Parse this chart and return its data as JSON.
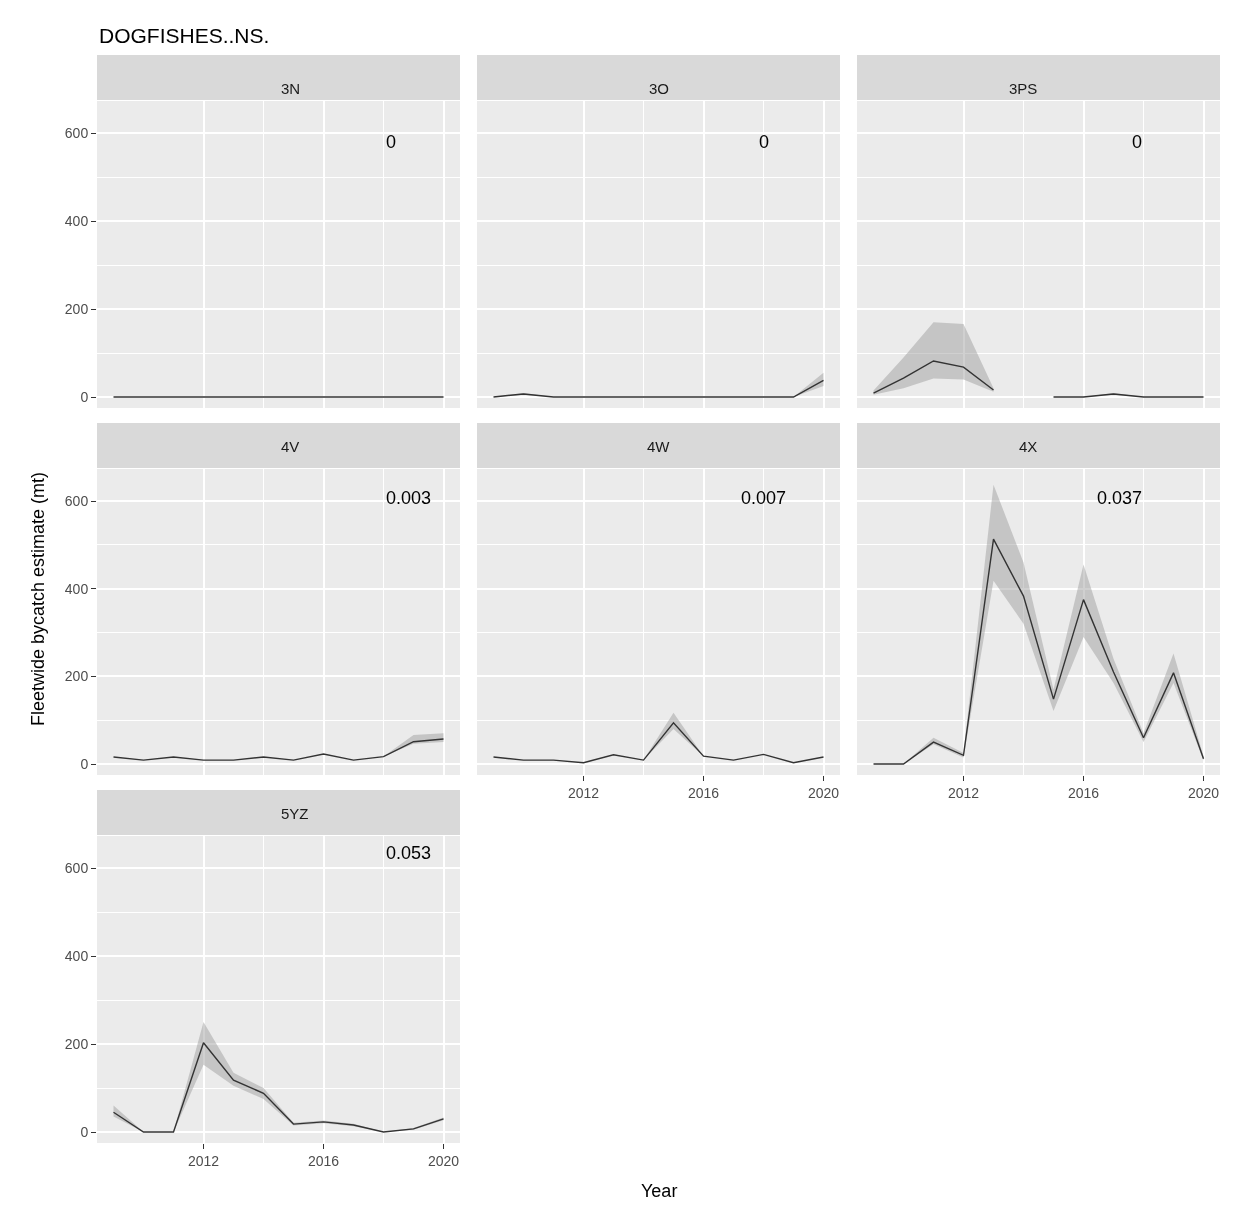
{
  "chart_data": [
    {
      "type": "line",
      "title": "3N",
      "annotations": [
        "DOGFISHES..NS.",
        "0"
      ],
      "x": [
        2009,
        2010,
        2011,
        2012,
        2013,
        2014,
        2015,
        2016,
        2017,
        2018,
        2019,
        2020
      ],
      "xlim": [
        2008.45,
        2020.55
      ],
      "ylim": [
        -25,
        673
      ],
      "xticks": [
        2012,
        2016,
        2020
      ],
      "yticks": [
        0,
        200,
        400,
        600
      ],
      "grid": true,
      "tick_labels": "y",
      "series": [
        {
          "color": "#333333",
          "values": [
            0,
            0,
            0,
            0,
            0,
            0,
            0,
            0,
            0,
            0,
            0,
            0
          ]
        }
      ]
    },
    {
      "type": "line",
      "title": "3O",
      "annotations": [
        "0"
      ],
      "x": [
        2009,
        2010,
        2011,
        2012,
        2013,
        2014,
        2015,
        2016,
        2017,
        2018,
        2019,
        2020
      ],
      "xlim": [
        2008.45,
        2020.55
      ],
      "ylim": [
        -25,
        673
      ],
      "xticks": [
        2012,
        2016,
        2020
      ],
      "yticks": [
        0,
        200,
        400,
        600
      ],
      "grid": true,
      "tick_labels": false,
      "series": [
        {
          "color": "#333333",
          "values": [
            0,
            7,
            0,
            0,
            0,
            0,
            0,
            0,
            0,
            0,
            0,
            38
          ],
          "lower": [
            0,
            5,
            0,
            0,
            0,
            0,
            0,
            0,
            0,
            0,
            0,
            25
          ],
          "upper": [
            0,
            9,
            0,
            0,
            0,
            0,
            0,
            0,
            0,
            0,
            0,
            55
          ]
        }
      ]
    },
    {
      "type": "line",
      "title": "3PS",
      "annotations": [
        "0"
      ],
      "x": [
        2009,
        2010,
        2011,
        2012,
        2013,
        2014,
        2015,
        2016,
        2017,
        2018,
        2019,
        2020
      ],
      "xlim": [
        2008.45,
        2020.55
      ],
      "ylim": [
        -25,
        673
      ],
      "xticks": [
        2012,
        2016,
        2020
      ],
      "yticks": [
        0,
        200,
        400,
        600
      ],
      "grid": true,
      "tick_labels": false,
      "series": [
        {
          "color": "#333333",
          "values": [
            9,
            43,
            82,
            68,
            16,
            null,
            0,
            0,
            7,
            0,
            0,
            0
          ],
          "lower": [
            5,
            20,
            42,
            40,
            12,
            null,
            0,
            0,
            5,
            0,
            0,
            0
          ],
          "upper": [
            15,
            90,
            170,
            166,
            20,
            null,
            0,
            0,
            9,
            0,
            0,
            0
          ]
        }
      ]
    },
    {
      "type": "line",
      "title": "4V",
      "ylabel": "Fleetwide bycatch estimate (mt)",
      "annotations": [
        "0.003"
      ],
      "x": [
        2009,
        2010,
        2011,
        2012,
        2013,
        2014,
        2015,
        2016,
        2017,
        2018,
        2019,
        2020
      ],
      "xlim": [
        2008.45,
        2020.55
      ],
      "ylim": [
        -25,
        673
      ],
      "xticks": [
        2012,
        2016,
        2020
      ],
      "yticks": [
        0,
        200,
        400,
        600
      ],
      "grid": true,
      "tick_labels": "y",
      "series": [
        {
          "color": "#333333",
          "values": [
            16,
            9,
            16,
            9,
            9,
            16,
            9,
            23,
            9,
            17,
            51,
            57
          ],
          "lower": [
            16,
            9,
            16,
            9,
            9,
            16,
            9,
            23,
            9,
            17,
            46,
            50
          ],
          "upper": [
            16,
            9,
            16,
            9,
            9,
            16,
            9,
            23,
            9,
            17,
            66,
            70
          ]
        }
      ]
    },
    {
      "type": "line",
      "title": "4W",
      "xlabel": "Year",
      "annotations": [
        "0.007"
      ],
      "x": [
        2009,
        2010,
        2011,
        2012,
        2013,
        2014,
        2015,
        2016,
        2017,
        2018,
        2019,
        2020
      ],
      "xlim": [
        2008.45,
        2020.55
      ],
      "ylim": [
        -25,
        673
      ],
      "xticks": [
        2012,
        2016,
        2020
      ],
      "yticks": [
        0,
        200,
        400,
        600
      ],
      "grid": true,
      "tick_labels": "x",
      "series": [
        {
          "color": "#333333",
          "values": [
            16,
            9,
            9,
            3,
            21,
            9,
            94,
            18,
            9,
            22,
            3,
            16
          ],
          "lower": [
            16,
            9,
            9,
            3,
            21,
            9,
            80,
            18,
            9,
            22,
            3,
            16
          ],
          "upper": [
            16,
            9,
            9,
            3,
            21,
            9,
            117,
            18,
            9,
            22,
            3,
            16
          ]
        }
      ]
    },
    {
      "type": "line",
      "title": "4X",
      "annotations": [
        "0.037"
      ],
      "x": [
        2009,
        2010,
        2011,
        2012,
        2013,
        2014,
        2015,
        2016,
        2017,
        2018,
        2019,
        2020
      ],
      "xlim": [
        2008.45,
        2020.55
      ],
      "ylim": [
        -25,
        673
      ],
      "xticks": [
        2012,
        2016,
        2020
      ],
      "yticks": [
        0,
        200,
        400,
        600
      ],
      "grid": true,
      "tick_labels": "x",
      "series": [
        {
          "color": "#333333",
          "values": [
            0,
            0,
            50,
            20,
            513,
            383,
            148,
            375,
            210,
            60,
            208,
            12
          ],
          "lower": [
            0,
            0,
            45,
            15,
            418,
            320,
            121,
            290,
            185,
            50,
            185,
            8
          ],
          "upper": [
            0,
            0,
            60,
            25,
            637,
            460,
            170,
            455,
            240,
            70,
            252,
            18
          ]
        }
      ]
    },
    {
      "type": "line",
      "title": "5YZ",
      "annotations": [
        "0.053"
      ],
      "x": [
        2009,
        2010,
        2011,
        2012,
        2013,
        2014,
        2015,
        2016,
        2017,
        2018,
        2019,
        2020
      ],
      "xlim": [
        2008.45,
        2020.55
      ],
      "ylim": [
        -25,
        673
      ],
      "xticks": [
        2012,
        2016,
        2020
      ],
      "yticks": [
        0,
        200,
        400,
        600
      ],
      "grid": true,
      "series": [
        {
          "color": "#333333",
          "values": [
            45,
            0,
            0,
            203,
            118,
            88,
            18,
            23,
            16,
            0,
            7,
            30
          ],
          "lower": [
            35,
            0,
            0,
            153,
            105,
            75,
            15,
            20,
            13,
            0,
            5,
            27
          ],
          "upper": [
            60,
            0,
            0,
            250,
            135,
            100,
            21,
            26,
            19,
            0,
            9,
            33
          ]
        }
      ]
    }
  ]
}
